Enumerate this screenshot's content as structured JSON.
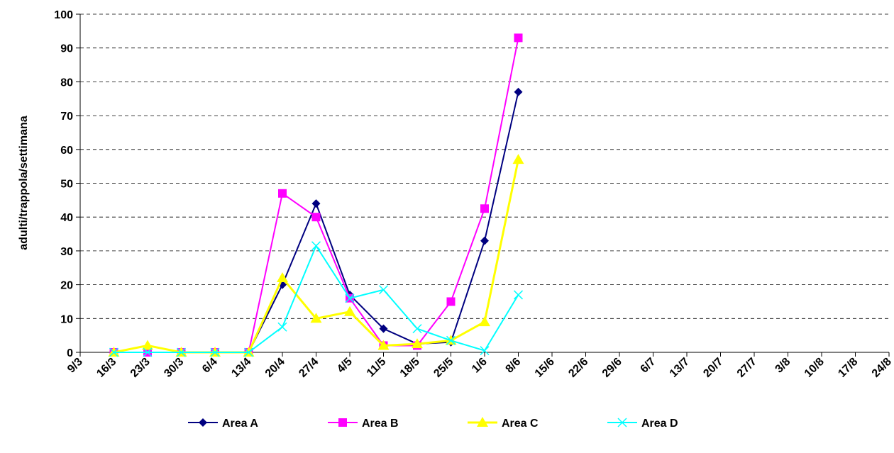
{
  "chart_data": {
    "type": "line",
    "y_label": "adulti/trappola/settimana",
    "categories": [
      "9/3",
      "16/3",
      "23/3",
      "30/3",
      "6/4",
      "13/4",
      "20/4",
      "27/4",
      "4/5",
      "11/5",
      "18/5",
      "25/5",
      "1/6",
      "8/6",
      "15/6",
      "22/6",
      "29/6",
      "6/7",
      "13/7",
      "20/7",
      "27/7",
      "3/8",
      "10/8",
      "17/8",
      "24/8"
    ],
    "series": [
      {
        "name": "Area A",
        "color": "#000080",
        "marker": "diamond",
        "values": [
          null,
          0,
          0,
          0,
          0,
          0,
          20,
          44,
          17,
          7,
          2.5,
          3,
          33,
          77,
          null,
          null,
          null,
          null,
          null,
          null,
          null,
          null,
          null,
          null,
          null
        ]
      },
      {
        "name": "Area B",
        "color": "#ff00ff",
        "marker": "square",
        "values": [
          null,
          0,
          0,
          0,
          0,
          0,
          47,
          40,
          16,
          2,
          2,
          15,
          42.5,
          93,
          null,
          null,
          null,
          null,
          null,
          null,
          null,
          null,
          null,
          null,
          null
        ]
      },
      {
        "name": "Area C",
        "color": "#ffff00",
        "marker": "triangle",
        "values": [
          null,
          0,
          2,
          0,
          0,
          0,
          22,
          10,
          12,
          2,
          2.5,
          3.5,
          9,
          57,
          null,
          null,
          null,
          null,
          null,
          null,
          null,
          null,
          null,
          null,
          null
        ]
      },
      {
        "name": "Area D",
        "color": "#00ffff",
        "marker": "x",
        "values": [
          null,
          0,
          0,
          0,
          0,
          0,
          7.5,
          31.5,
          16,
          18.5,
          7,
          3.5,
          0.5,
          17,
          null,
          null,
          null,
          null,
          null,
          null,
          null,
          null,
          null,
          null,
          null
        ]
      }
    ],
    "ylim": [
      0,
      100
    ],
    "yticks": [
      0,
      10,
      20,
      30,
      40,
      50,
      60,
      70,
      80,
      90,
      100
    ],
    "grid": true
  }
}
